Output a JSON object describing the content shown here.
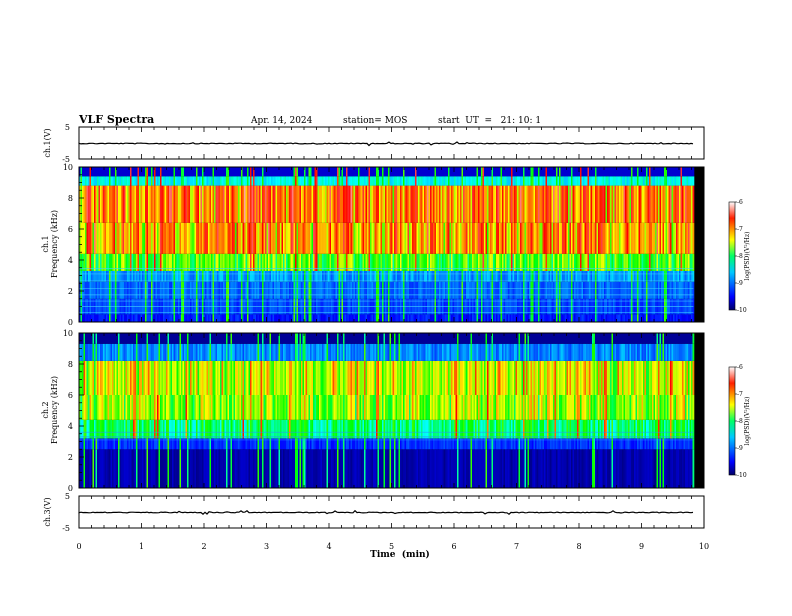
{
  "header": {
    "title": "VLF Spectra",
    "date": "Apr. 14, 2024",
    "station": "station= MOS",
    "start": "start  UT  =   21: 10: 1"
  },
  "chart_data": [
    {
      "type": "line",
      "name": "ch1-voltage",
      "ylabel": "ch.1(V)",
      "ylim": [
        -5,
        5
      ],
      "yticks": [
        "5",
        "-5"
      ],
      "xlim": [
        0,
        10
      ],
      "trace_level": 0
    },
    {
      "type": "heatmap",
      "name": "ch1-spectrogram",
      "ylabel_lines": [
        "ch.1",
        "Frequency (kHz)"
      ],
      "ylim": [
        0,
        10
      ],
      "yticks": [
        "0",
        "2",
        "4",
        "6",
        "8",
        "10"
      ],
      "xlim": [
        0,
        10
      ],
      "data_end_min": 9.83,
      "colorbar": {
        "label": "log(PSD)(V²/Hz)",
        "range": [
          -10,
          -6
        ],
        "ticks": [
          "-6",
          "-7",
          "-8",
          "-9",
          "-10"
        ]
      }
    },
    {
      "type": "heatmap",
      "name": "ch2-spectrogram",
      "ylabel_lines": [
        "ch.2",
        "Frequency (kHz)"
      ],
      "ylim": [
        0,
        10
      ],
      "yticks": [
        "0",
        "2",
        "4",
        "6",
        "8",
        "10"
      ],
      "xlim": [
        0,
        10
      ],
      "data_end_min": 9.83,
      "colorbar": {
        "label": "log(PSD)(V²/Hz)",
        "range": [
          -10,
          -6
        ],
        "ticks": [
          "-6",
          "-7",
          "-8",
          "-9",
          "-10"
        ]
      }
    },
    {
      "type": "line",
      "name": "ch3-voltage",
      "ylabel": "ch.3(V)",
      "ylim": [
        -5,
        5
      ],
      "yticks": [
        "5",
        "-5"
      ],
      "xlim": [
        0,
        10
      ],
      "trace_level": 0
    }
  ],
  "xaxis": {
    "label": "Time  (min)",
    "ticks": [
      "0",
      "1",
      "2",
      "3",
      "4",
      "5",
      "6",
      "7",
      "8",
      "9",
      "10"
    ]
  }
}
